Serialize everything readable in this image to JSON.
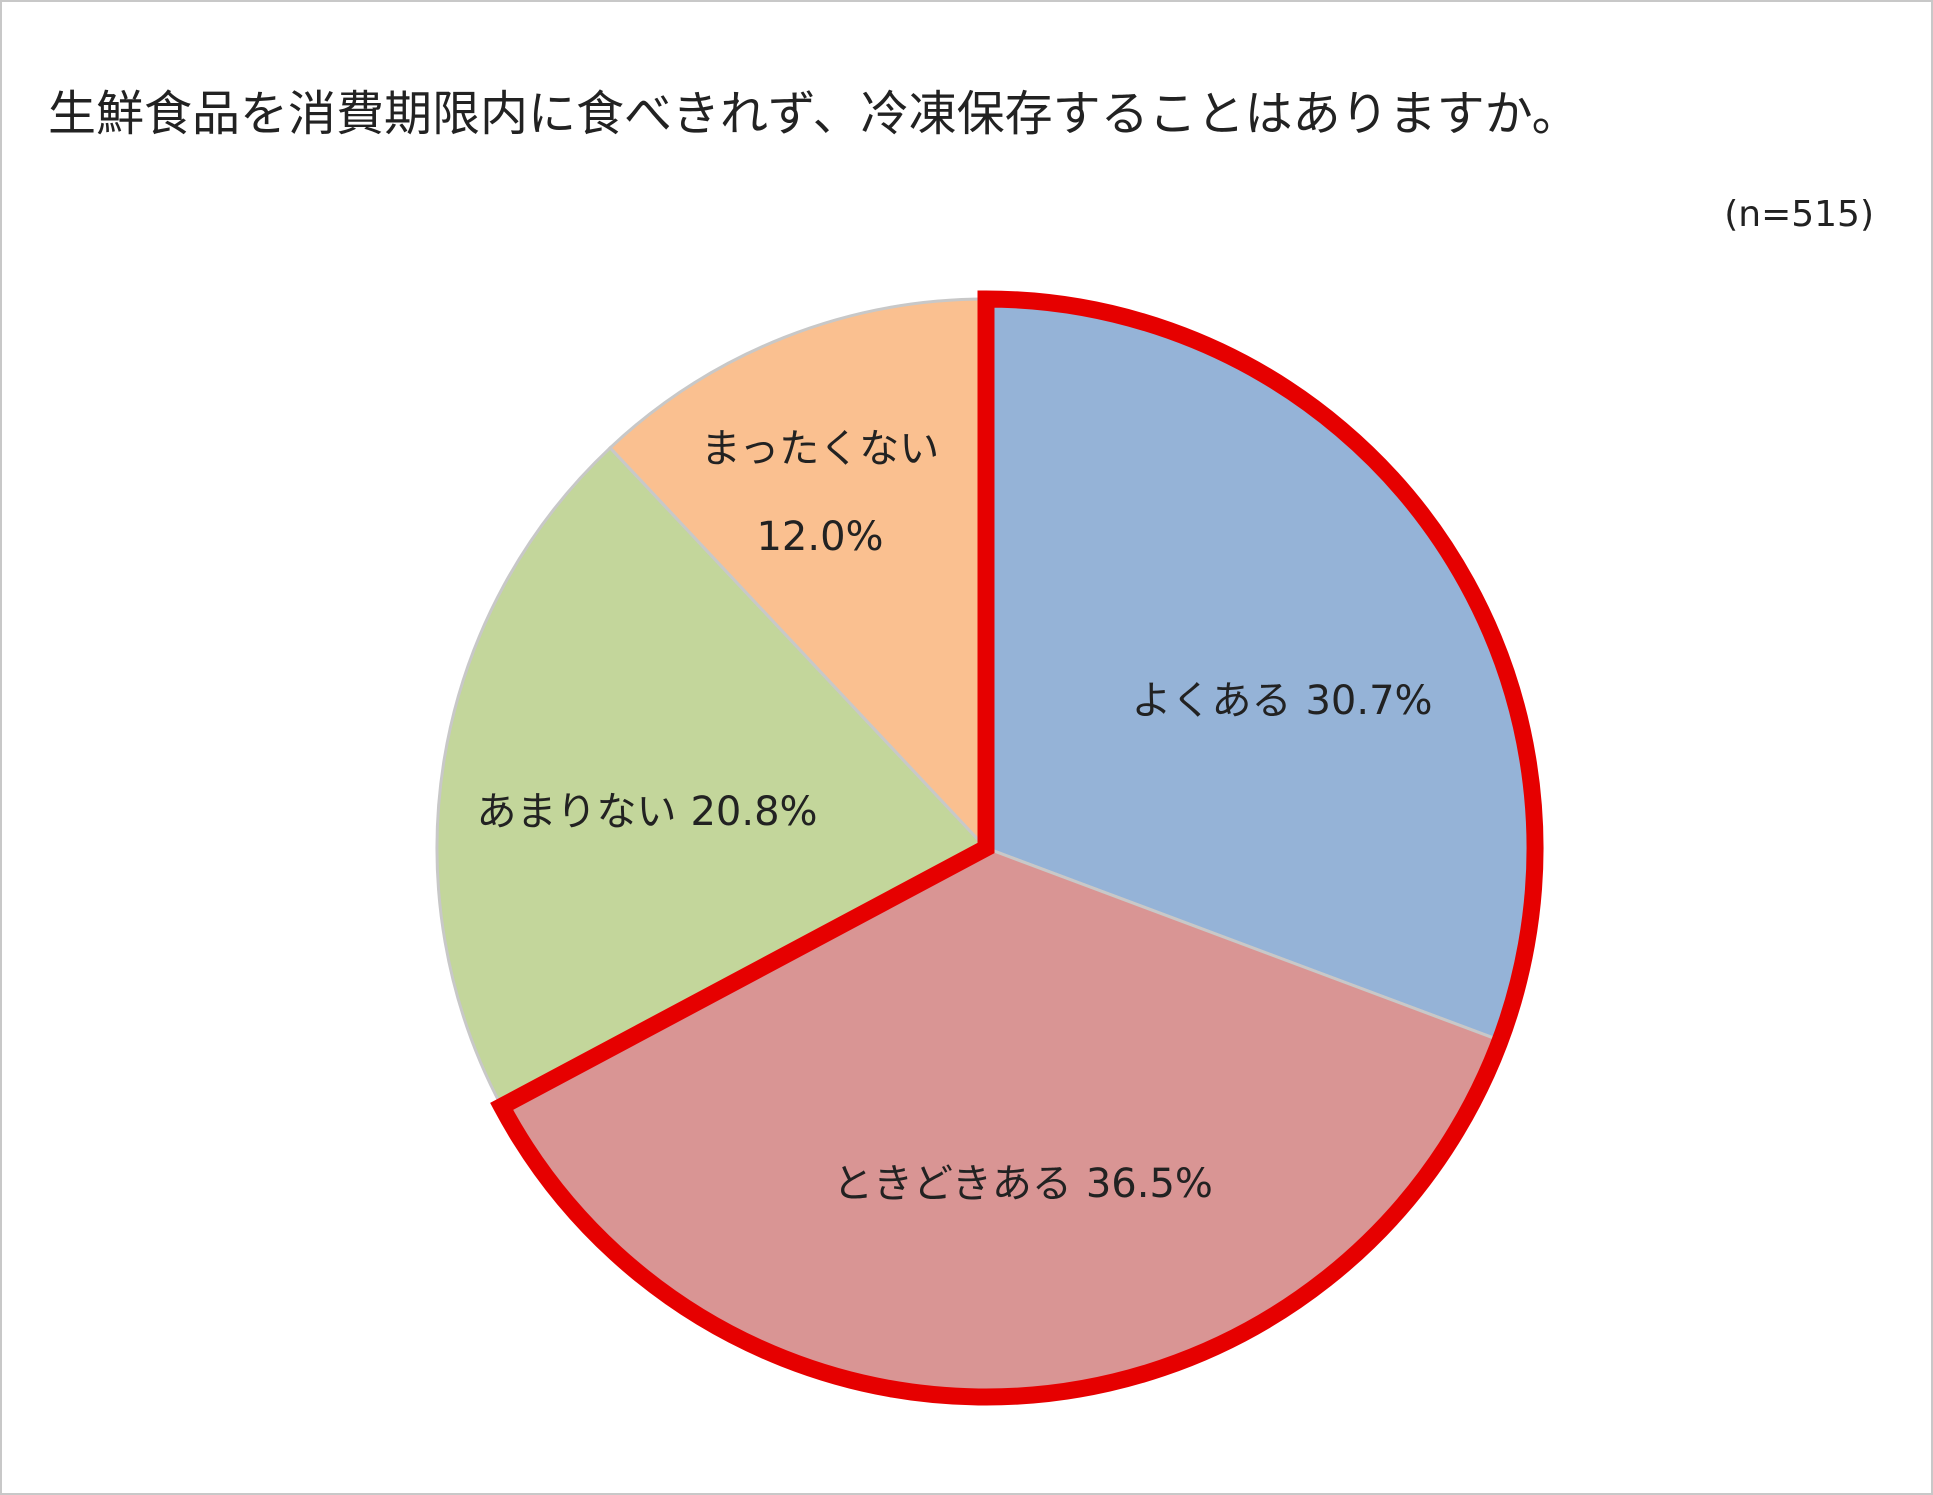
{
  "chart_data": {
    "type": "pie",
    "title": "生鮮食品を消費期限内に食べきれず、冷凍保存することはありますか。",
    "subtitle": "(n=515)",
    "categories": [
      "よくある",
      "ときどきある",
      "あまりない",
      "まったくない"
    ],
    "values": [
      30.7,
      36.5,
      20.8,
      12.0
    ],
    "value_labels": [
      "30.7%",
      "36.5%",
      "20.8%",
      "12.0%"
    ],
    "colors": [
      "#95b3d7",
      "#d99594",
      "#c3d69b",
      "#fac090"
    ],
    "highlight": [
      0,
      1
    ],
    "highlight_color": "#e60000"
  }
}
